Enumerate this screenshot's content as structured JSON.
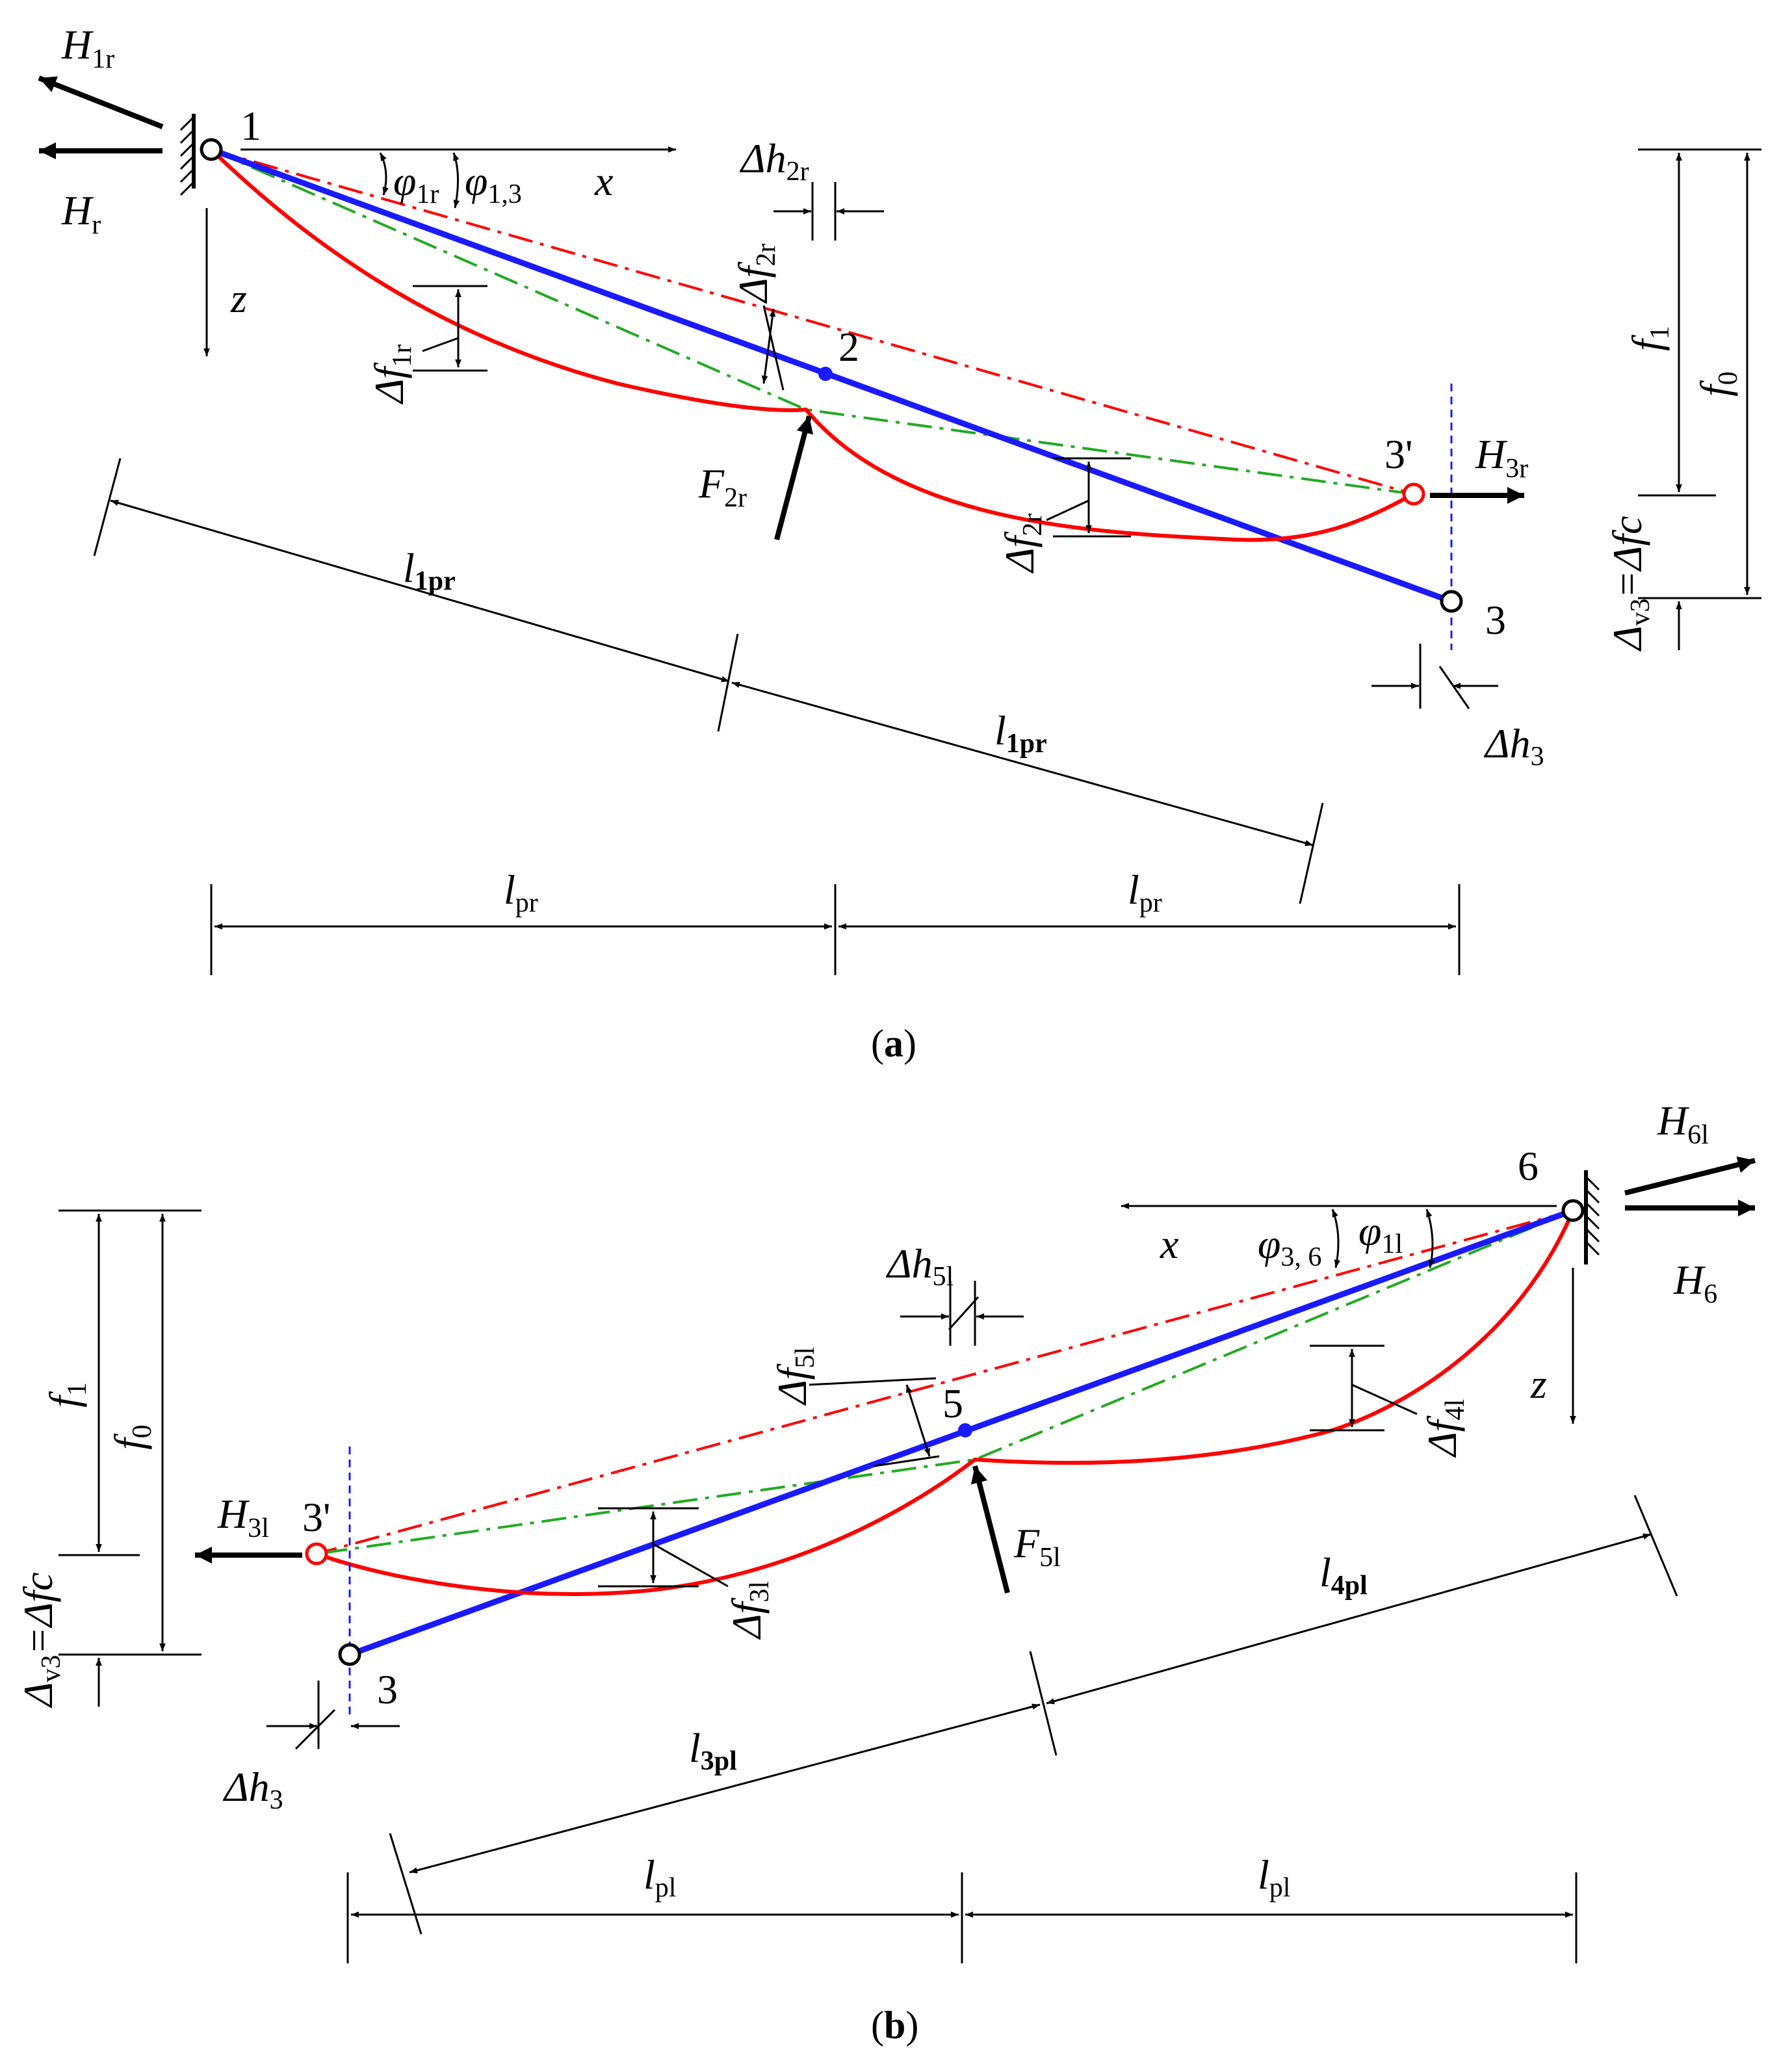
{
  "panel_a": {
    "caption": {
      "open": "(",
      "letter": "a",
      "close": ")"
    },
    "points": {
      "p1": "1",
      "p2": "2",
      "p3": "3",
      "p3prime": "3'"
    },
    "axes": {
      "x": "x",
      "z": "z"
    },
    "forces": {
      "H1r": {
        "main": "H",
        "sub": "1r"
      },
      "Hr": {
        "main": "H",
        "sub": "r"
      },
      "H3r": {
        "main": "H",
        "sub": "3r"
      },
      "F2r": {
        "main": "F",
        "sub": "2r"
      }
    },
    "angles": {
      "phi1r": {
        "main": "φ",
        "sub": "1r"
      },
      "phi13": {
        "main": "φ",
        "sub": "1,3"
      }
    },
    "deflections": {
      "dh2r": {
        "main": "Δh",
        "sub": "2r"
      },
      "df2r_top": {
        "main": "Δf",
        "sub": "2r"
      },
      "df1r": {
        "main": "Δf",
        "sub": "1r"
      },
      "df2r_bottom": {
        "main": "Δf",
        "sub": "2r"
      },
      "dh3": {
        "main": "Δh",
        "sub": "3"
      }
    },
    "sag": {
      "f1": {
        "main": "f",
        "sub": "1"
      },
      "f0": {
        "main": "f",
        "sub": "0"
      },
      "dv3": {
        "pre": "Δ",
        "sub": "v3",
        "post": "=Δfc"
      }
    },
    "spans": {
      "l1pr_a": {
        "main": "l",
        "sub": "1pr"
      },
      "l1pr_b": {
        "main": "l",
        "sub": "1pr"
      },
      "lpr_left": {
        "main": "l",
        "sub": "pr"
      },
      "lpr_right": {
        "main": "l",
        "sub": "pr"
      }
    }
  },
  "panel_b": {
    "caption": {
      "open": "(",
      "letter": "b",
      "close": ")"
    },
    "points": {
      "p3": "3",
      "p3prime": "3'",
      "p5": "5",
      "p6": "6"
    },
    "axes": {
      "x": "x",
      "z": "z"
    },
    "forces": {
      "H6l": {
        "main": "H",
        "sub": "6l"
      },
      "H6": {
        "main": "H",
        "sub": "6"
      },
      "H3l": {
        "main": "H",
        "sub": "3l"
      },
      "F5l": {
        "main": "F",
        "sub": "5l"
      }
    },
    "angles": {
      "phi36": {
        "main": "φ",
        "sub": "3, 6"
      },
      "phi1l": {
        "main": "φ",
        "sub": "1l"
      }
    },
    "deflections": {
      "dh5l": {
        "main": "Δh",
        "sub": "5l"
      },
      "df5l": {
        "main": "Δf",
        "sub": "5l"
      },
      "df4l": {
        "main": "Δf",
        "sub": "4l"
      },
      "df3l": {
        "main": "Δf",
        "sub": "3l"
      },
      "dh3": {
        "main": "Δh",
        "sub": "3"
      }
    },
    "sag": {
      "f1": {
        "main": "f",
        "sub": "1"
      },
      "f0": {
        "main": "f",
        "sub": "0"
      },
      "dv3": {
        "pre": "Δ",
        "sub": "v3",
        "post": "=Δfc"
      }
    },
    "spans": {
      "l4pl": {
        "main": "l",
        "sub": "4pl"
      },
      "l3pl": {
        "main": "l",
        "sub": "3pl"
      },
      "lpl_left": {
        "main": "l",
        "sub": "pl"
      },
      "lpl_right": {
        "main": "l",
        "sub": "pl"
      }
    }
  },
  "colors": {
    "wire_initial": "#1a1aff",
    "wire_deformed": "#ff0000",
    "chord_dashdot": "#ff0000",
    "secondary_dashdot": "#22aa22",
    "reference_dashed": "#1a1aff"
  }
}
